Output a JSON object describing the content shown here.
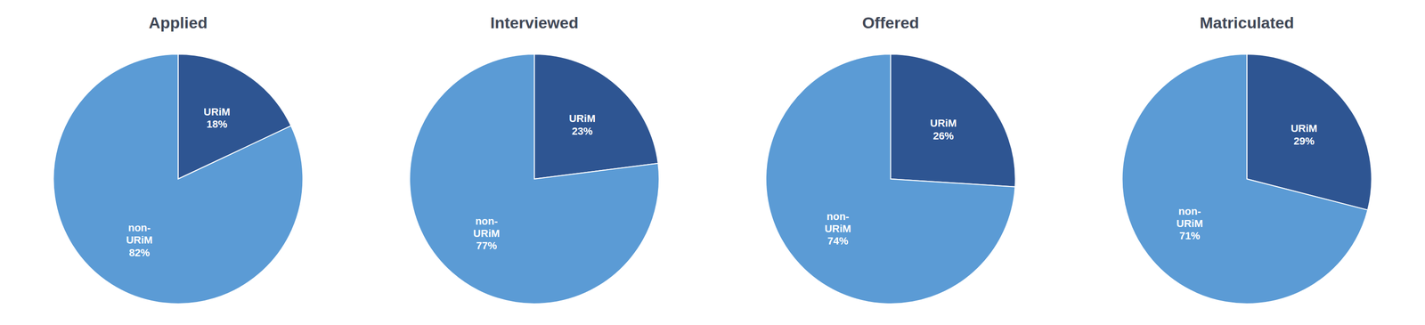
{
  "chart_data": [
    {
      "type": "pie",
      "title": "Applied",
      "values": [
        18,
        82
      ],
      "value_labels": [
        "URiM\n18%",
        "non-\nURiM\n82%"
      ],
      "colors": [
        "#2e5592",
        "#5b9bd5"
      ],
      "data_labels": true
    },
    {
      "type": "pie",
      "title": "Interviewed",
      "values": [
        23,
        77
      ],
      "value_labels": [
        "URiM\n23%",
        "non-\nURiM\n77%"
      ],
      "colors": [
        "#2e5592",
        "#5b9bd5"
      ],
      "data_labels": true
    },
    {
      "type": "pie",
      "title": "Offered",
      "values": [
        26,
        74
      ],
      "value_labels": [
        "URiM\n26%",
        "non-\nURiM\n74%"
      ],
      "colors": [
        "#2e5592",
        "#5b9bd5"
      ],
      "data_labels": true
    },
    {
      "type": "pie",
      "title": "Matriculated",
      "values": [
        29,
        71
      ],
      "value_labels": [
        "URiM\n29%",
        "non-\nURiM\n71%"
      ],
      "colors": [
        "#2e5592",
        "#5b9bd5"
      ],
      "data_labels": true
    }
  ]
}
